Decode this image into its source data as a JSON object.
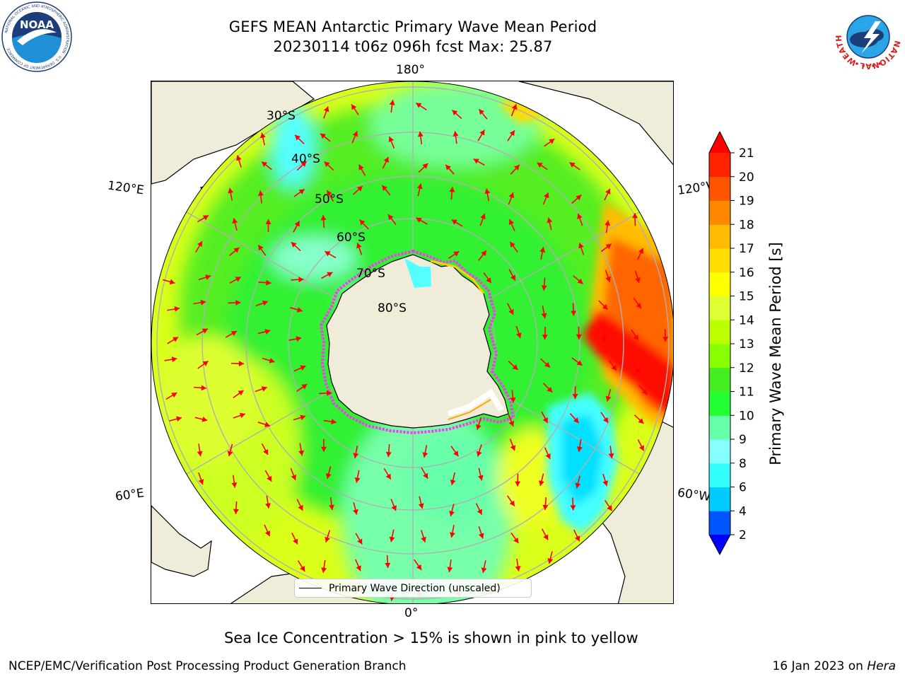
{
  "header": {
    "title_line1": "GEFS MEAN Antarctic Primary Wave Mean Period",
    "title_line2": "20230114 t06z 096h fcst   Max: 25.87"
  },
  "logos": {
    "left": {
      "name": "noaa-logo",
      "text": "NOAA",
      "ring_text": "NATIONAL OCEANIC AND ATMOSPHERIC ADMINISTRATION · U.S. DEPARTMENT OF COMMERCE"
    },
    "right": {
      "name": "nws-logo",
      "ring_text": "NATIONAL WEATHER SERVICE"
    }
  },
  "map": {
    "projection": "south-polar-stereographic",
    "edge_labels": {
      "top": "180°",
      "bottom": "0°",
      "left_upper": "120°E",
      "right_upper": "120°W",
      "left_lower": "60°E",
      "right_lower": "60°W"
    },
    "latitude_labels": [
      "30°S",
      "40°S",
      "50°S",
      "60°S",
      "70°S",
      "80°S"
    ],
    "legend_label": "Primary Wave Direction (unscaled)",
    "land_color": "#efedda",
    "arrow_color": "#ff0000",
    "sea_ice_colors": [
      "#ff33ff",
      "#ffffff",
      "#ffd000"
    ]
  },
  "colorbar": {
    "label": "Primary Wave Mean Period [s]",
    "ticks": [
      "2",
      "4",
      "6",
      "8",
      "9",
      "10",
      "11",
      "12",
      "13",
      "14",
      "15",
      "16",
      "17",
      "18",
      "19",
      "20",
      "21"
    ],
    "bands": [
      {
        "from": "2",
        "color": "#0055ff"
      },
      {
        "from": "4",
        "color": "#00ccff"
      },
      {
        "from": "6",
        "color": "#33ffff"
      },
      {
        "from": "8",
        "color": "#88ffff"
      },
      {
        "from": "9",
        "color": "#66ffaa"
      },
      {
        "from": "10",
        "color": "#22ff33"
      },
      {
        "from": "11",
        "color": "#44ee22"
      },
      {
        "from": "12",
        "color": "#88ff00"
      },
      {
        "from": "13",
        "color": "#bbff00"
      },
      {
        "from": "14",
        "color": "#ddff33"
      },
      {
        "from": "15",
        "color": "#ffff00"
      },
      {
        "from": "16",
        "color": "#ffdd00"
      },
      {
        "from": "17",
        "color": "#ffbb00"
      },
      {
        "from": "18",
        "color": "#ff8800"
      },
      {
        "from": "19",
        "color": "#ff5500"
      },
      {
        "from": "20",
        "color": "#ff2200"
      }
    ],
    "extend_low_color": "#0000ff",
    "extend_high_color": "#ff0000"
  },
  "subnote": "Sea Ice Concentration > 15% is shown in pink to yellow",
  "footer": {
    "left": "NCEP/EMC/Verification Post Processing Product Generation Branch",
    "right_prefix": "16 Jan 2023 on ",
    "right_machine": "Hera"
  }
}
